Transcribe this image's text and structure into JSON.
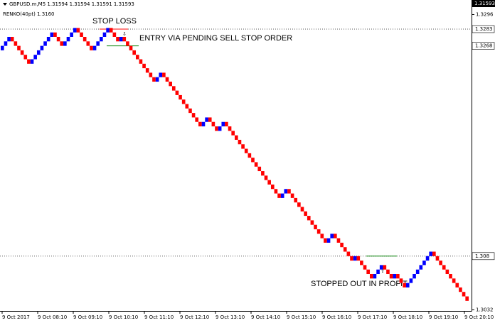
{
  "chart_data": {
    "type": "renko",
    "symbol_header": "GBPUSD.m,M5  1.31594 1.31594 1.31591 1.31593",
    "indicator_label": "RENKO(40pt) 1.3160",
    "current_price": 1.31593,
    "brick_size": 0.0004,
    "up_color": "#0000ff",
    "down_color": "#ff0000",
    "values": [
      1.3268,
      1.3272,
      1.3276,
      1.3272,
      1.3268,
      1.3264,
      1.326,
      1.3256,
      1.3252,
      1.3256,
      1.326,
      1.3264,
      1.3268,
      1.3272,
      1.3276,
      1.328,
      1.3276,
      1.3272,
      1.3268,
      1.3272,
      1.3276,
      1.328,
      1.3284,
      1.328,
      1.3276,
      1.3272,
      1.3268,
      1.3264,
      1.3268,
      1.3272,
      1.3276,
      1.328,
      1.3284,
      1.328,
      1.3276,
      1.3272,
      1.3276,
      1.3272,
      1.3268,
      1.3264,
      1.326,
      1.3256,
      1.3252,
      1.3248,
      1.3244,
      1.324,
      1.3236,
      1.324,
      1.3244,
      1.324,
      1.3236,
      1.3232,
      1.3228,
      1.3224,
      1.322,
      1.3216,
      1.3212,
      1.3208,
      1.3204,
      1.32,
      1.3196,
      1.32,
      1.3204,
      1.32,
      1.3196,
      1.3192,
      1.3196,
      1.32,
      1.3196,
      1.3192,
      1.3188,
      1.3184,
      1.318,
      1.3176,
      1.3172,
      1.3168,
      1.3164,
      1.316,
      1.3156,
      1.3152,
      1.3148,
      1.3144,
      1.314,
      1.3136,
      1.3132,
      1.3136,
      1.314,
      1.3136,
      1.3132,
      1.3128,
      1.3124,
      1.312,
      1.3116,
      1.3112,
      1.3108,
      1.3104,
      1.31,
      1.3096,
      1.3092,
      1.3096,
      1.31,
      1.3096,
      1.3092,
      1.3088,
      1.3084,
      1.308,
      1.3076,
      1.308,
      1.3076,
      1.3072,
      1.3068,
      1.3064,
      1.306,
      1.3064,
      1.3068,
      1.3072,
      1.3068,
      1.3064,
      1.306,
      1.3064,
      1.306,
      1.3056,
      1.3052,
      1.3056,
      1.306,
      1.3064,
      1.3068,
      1.3072,
      1.3076,
      1.308,
      1.3084,
      1.308,
      1.3076,
      1.3072,
      1.3068,
      1.3064,
      1.306,
      1.3056,
      1.3052,
      1.3048,
      1.3044,
      1.304
    ],
    "ylim": [
      1.3031,
      1.3309
    ],
    "yticks": [
      1.3296,
      1.3032
    ],
    "price_labels": [
      1.3283,
      1.3268,
      1.308
    ],
    "dotted_levels": [
      1.3283,
      1.308
    ],
    "levels": [
      {
        "value": 1.3283,
        "color": "#ff0000"
      },
      {
        "value": 1.3268,
        "color": "#008000"
      },
      {
        "value": 1.308,
        "color": "#008000"
      }
    ],
    "annotations": [
      "STOP LOSS",
      "ENTRY VIA PENDING SELL STOP ORDER",
      "STOPPED OUT IN PROFIT"
    ],
    "x_labels": [
      "9 Oct 2017",
      "9 Oct 08:10",
      "9 Oct 09:10",
      "9 Oct 10:10",
      "9 Oct 11:10",
      "9 Oct 12:10",
      "9 Oct 13:10",
      "9 Oct 14:10",
      "9 Oct 15:10",
      "9 Oct 16:10",
      "9 Oct 17:10",
      "9 Oct 18:10",
      "9 Oct 19:10",
      "9 Oct 20:10"
    ]
  }
}
